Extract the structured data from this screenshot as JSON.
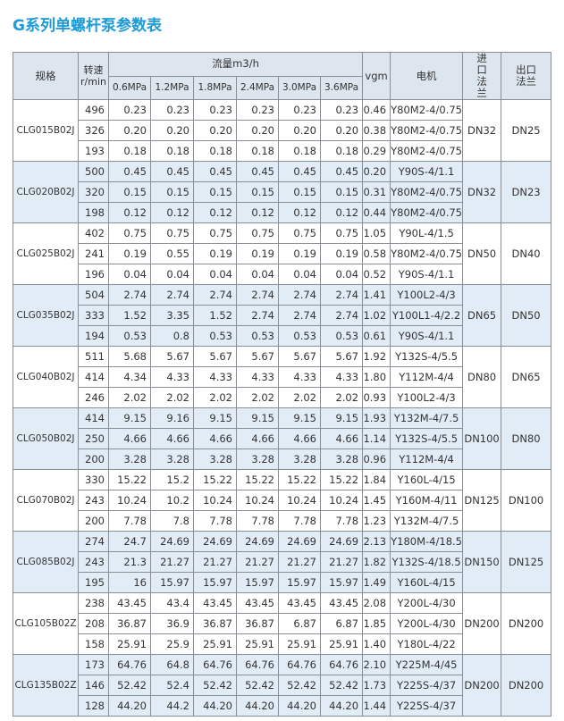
{
  "header": {
    "title": "G系列单螺杆泵参数表"
  },
  "table": {
    "headers": {
      "model": "规格",
      "speed": "转速 r/min",
      "flow": "流量m3/h",
      "pressures": [
        "0.6MPa",
        "1.2MPa",
        "1.8MPa",
        "2.4MPa",
        "3.0MPa",
        "3.6MPa"
      ],
      "vgm": "vgm",
      "motor": "电机",
      "inlet": "进口 法兰",
      "outlet": "出口 法兰"
    },
    "groups": [
      {
        "model": "CLG015B02J",
        "inlet": "DN32",
        "outlet": "DN25",
        "rows": [
          [
            "496",
            "0.23",
            "0.23",
            "0.23",
            "0.23",
            "0.23",
            "0.23",
            "0.46",
            "Y80M2-4/0.75"
          ],
          [
            "326",
            "0.20",
            "0.20",
            "0.20",
            "0.20",
            "0.20",
            "0.20",
            "0.38",
            "Y80M2-4/0.75"
          ],
          [
            "193",
            "0.18",
            "0.18",
            "0.18",
            "0.18",
            "0.18",
            "0.18",
            "0.29",
            "Y80M2-4/0.75"
          ]
        ]
      },
      {
        "model": "CLG020B02J",
        "inlet": "DN32",
        "outlet": "DN23",
        "rows": [
          [
            "500",
            "0.45",
            "0.45",
            "0.45",
            "0.45",
            "0.45",
            "0.45",
            "0.20",
            "Y90S-4/1.1"
          ],
          [
            "320",
            "0.15",
            "0.15",
            "0.15",
            "0.15",
            "0.15",
            "0.15",
            "0.31",
            "Y80M2-4/0.75"
          ],
          [
            "198",
            "0.12",
            "0.12",
            "0.12",
            "0.12",
            "0.12",
            "0.12",
            "0.44",
            "Y80M2-4/0.75"
          ]
        ]
      },
      {
        "model": "CLG025B02J",
        "inlet": "DN50",
        "outlet": "DN40",
        "rows": [
          [
            "402",
            "0.75",
            "0.75",
            "0.75",
            "0.75",
            "0.75",
            "0.75",
            "1.05",
            "Y90L-4/1.5"
          ],
          [
            "241",
            "0.19",
            "0.55",
            "0.19",
            "0.19",
            "0.19",
            "0.19",
            "0.58",
            "Y80M2-4/0.75"
          ],
          [
            "196",
            "0.04",
            "0.04",
            "0.04",
            "0.04",
            "0.04",
            "0.04",
            "0.52",
            "Y90S-4/1.1"
          ]
        ]
      },
      {
        "model": "CLG035B02J",
        "inlet": "DN65",
        "outlet": "DN50",
        "rows": [
          [
            "504",
            "2.74",
            "2.74",
            "2.74",
            "2.74",
            "2.74",
            "2.74",
            "1.41",
            "Y100L2-4/3"
          ],
          [
            "333",
            "1.52",
            "3.35",
            "1.52",
            "2.74",
            "2.74",
            "2.74",
            "1.02",
            "Y100L1-4/2.2"
          ],
          [
            "194",
            "0.53",
            "0.8",
            "0.53",
            "0.53",
            "0.53",
            "0.53",
            "0.61",
            "Y90S-4/1.1"
          ]
        ]
      },
      {
        "model": "CLG040B02J",
        "inlet": "DN80",
        "outlet": "DN65",
        "rows": [
          [
            "511",
            "5.68",
            "5.67",
            "5.67",
            "5.67",
            "5.67",
            "5.67",
            "1.92",
            "Y132S-4/5.5"
          ],
          [
            "414",
            "4.34",
            "4.33",
            "4.33",
            "4.33",
            "4.33",
            "4.33",
            "1.80",
            "Y112M-4/4"
          ],
          [
            "246",
            "2.02",
            "2.02",
            "2.02",
            "2.02",
            "2.02",
            "2.02",
            "0.93",
            "Y100L2-4/3"
          ]
        ]
      },
      {
        "model": "CLG050B02J",
        "inlet": "DN100",
        "outlet": "DN80",
        "rows": [
          [
            "414",
            "9.15",
            "9.16",
            "9.15",
            "9.15",
            "9.15",
            "9.15",
            "1.93",
            "Y132M-4/7.5"
          ],
          [
            "250",
            "4.66",
            "4.66",
            "4.66",
            "4.66",
            "4.66",
            "4.66",
            "1.14",
            "Y132S-4/5.5"
          ],
          [
            "200",
            "3.28",
            "3.28",
            "3.28",
            "3.28",
            "3.28",
            "3.28",
            "0.96",
            "Y112M-4/4"
          ]
        ]
      },
      {
        "model": "CLG070B02J",
        "inlet": "DN125",
        "outlet": "DN100",
        "rows": [
          [
            "330",
            "15.22",
            "15.2",
            "15.22",
            "15.22",
            "15.22",
            "15.22",
            "1.84",
            "Y160L-4/15"
          ],
          [
            "243",
            "10.24",
            "10.2",
            "10.24",
            "10.24",
            "10.24",
            "10.24",
            "1.45",
            "Y160M-4/11"
          ],
          [
            "200",
            "7.78",
            "7.8",
            "7.78",
            "7.78",
            "7.78",
            "7.78",
            "1.23",
            "Y132M-4/7.5"
          ]
        ]
      },
      {
        "model": "CLG085B02J",
        "inlet": "DN150",
        "outlet": "DN125",
        "rows": [
          [
            "274",
            "24.7",
            "24.69",
            "24.69",
            "24.69",
            "24.69",
            "24.69",
            "2.13",
            "Y180M-4/18.5"
          ],
          [
            "243",
            "21.3",
            "21.27",
            "21.27",
            "21.27",
            "21.27",
            "21.27",
            "1.82",
            "Y132S-4/18.5"
          ],
          [
            "195",
            "16",
            "15.97",
            "15.97",
            "15.97",
            "15.97",
            "15.97",
            "1.49",
            "Y160L-4/15"
          ]
        ]
      },
      {
        "model": "CLG105B02Z",
        "inlet": "DN200",
        "outlet": "DN200",
        "rows": [
          [
            "238",
            "43.45",
            "43.4",
            "43.45",
            "43.45",
            "43.45",
            "43.45",
            "2.08",
            "Y200L-4/30"
          ],
          [
            "208",
            "36.87",
            "36.9",
            "36.87",
            "36.87",
            "6.87",
            "6.87",
            "1.85",
            "Y200L-4/30"
          ],
          [
            "158",
            "25.91",
            "25.9",
            "25.91",
            "25.91",
            "25.91",
            "25.91",
            "1.40",
            "Y180L-4/22"
          ]
        ]
      },
      {
        "model": "CLG135B02Z",
        "inlet": "DN200",
        "outlet": "DN200",
        "rows": [
          [
            "173",
            "64.76",
            "64.8",
            "64.76",
            "64.76",
            "64.76",
            "64.76",
            "2.10",
            "Y225M-4/45"
          ],
          [
            "146",
            "52.42",
            "52.4",
            "52.42",
            "52.42",
            "52.42",
            "52.42",
            "1.73",
            "Y225S-4/37"
          ],
          [
            "128",
            "44.20",
            "44.2",
            "44.20",
            "44.20",
            "44.20",
            "44.20",
            "1.44",
            "Y225S-4/37"
          ]
        ]
      }
    ]
  }
}
